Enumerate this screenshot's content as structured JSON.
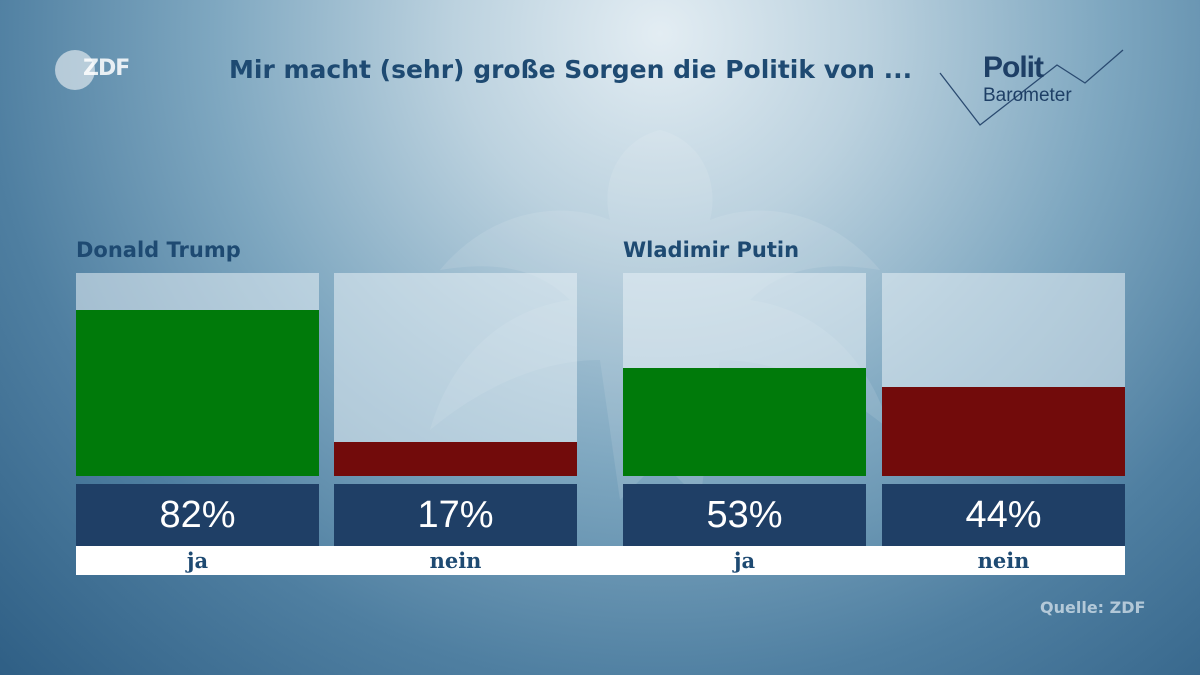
{
  "logo": {
    "zdf": "ZDF",
    "barometer_top": "Polit",
    "barometer_bottom": "Barometer"
  },
  "header": {
    "title": "Mir macht (sehr) große Sorgen die Politik von ..."
  },
  "colors": {
    "ja": "#007a0a",
    "nein": "#720b0b",
    "value_box": "#1f3f66",
    "text": "#1e4a72"
  },
  "chart_data": {
    "type": "bar",
    "title": "Mir macht (sehr) große Sorgen die Politik von ...",
    "ylim": [
      0,
      100
    ],
    "unit": "%",
    "grid": false,
    "groups": [
      {
        "name": "Donald Trump",
        "bars": [
          {
            "category": "ja",
            "value": 82,
            "label": "82%",
            "color": "#007a0a"
          },
          {
            "category": "nein",
            "value": 17,
            "label": "17%",
            "color": "#720b0b"
          }
        ]
      },
      {
        "name": "Wladimir Putin",
        "bars": [
          {
            "category": "ja",
            "value": 53,
            "label": "53%",
            "color": "#007a0a"
          },
          {
            "category": "nein",
            "value": 44,
            "label": "44%",
            "color": "#720b0b"
          }
        ]
      }
    ]
  },
  "footer": {
    "source": "Quelle: ZDF"
  }
}
